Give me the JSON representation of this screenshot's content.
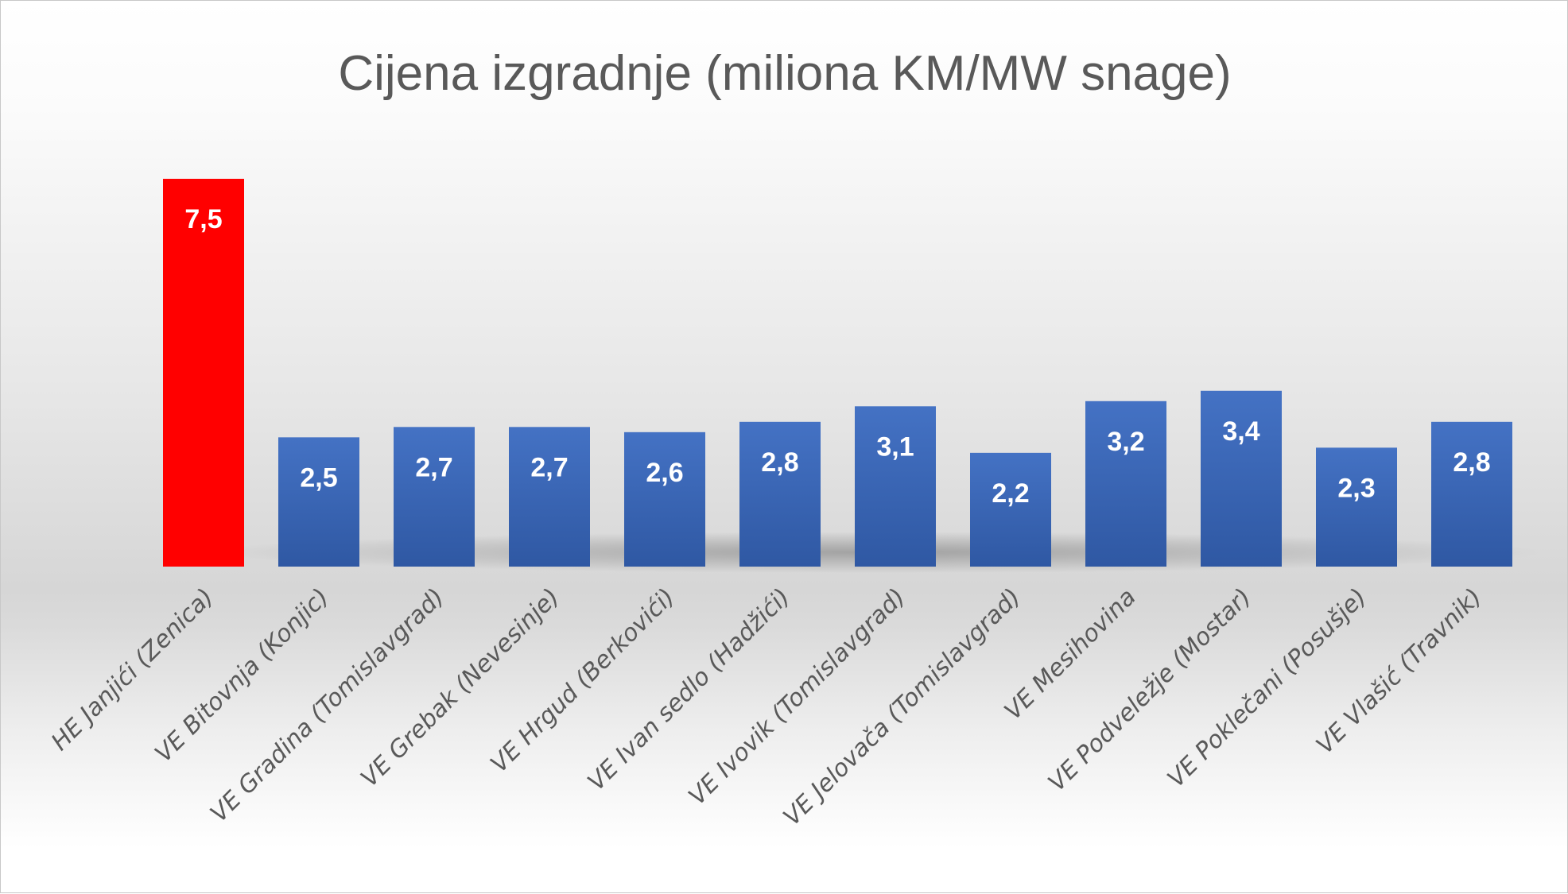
{
  "chart_data": {
    "type": "bar",
    "title": "Cijena izgradnje (miliona KM/MW snage)",
    "xlabel": "",
    "ylabel": "",
    "ylim": [
      0,
      7.5
    ],
    "grid": false,
    "legend": "none",
    "categories": [
      "HE Janjići (Zenica)",
      "VE Bitovnja (Konjic)",
      "VE Gradina (Tomislavgrad)",
      "VE Grebak (Nevesinje)",
      "VE Hrgud (Berkovići)",
      "VE Ivan sedlo (Hadžići)",
      "VE Ivovik (Tomislavgrad)",
      "VE Jelovača (Tomislavgrad)",
      "VE Mesihovina",
      "VE Podveležje (Mostar)",
      "VE Poklečani (Posušje)",
      "VE Vlašić (Travnik)"
    ],
    "values": [
      7.5,
      2.5,
      2.7,
      2.7,
      2.6,
      2.8,
      3.1,
      2.2,
      3.2,
      3.4,
      2.3,
      2.8
    ],
    "data_labels": [
      "7,5",
      "2,5",
      "2,7",
      "2,7",
      "2,6",
      "2,8",
      "3,1",
      "2,2",
      "3,2",
      "3,4",
      "2,3",
      "2,8"
    ],
    "colors": {
      "highlight": "#ff0000",
      "bar_top": "#4472c4",
      "bar_bottom": "#2f56a0",
      "text": "#595959"
    },
    "highlight_index": 0
  }
}
